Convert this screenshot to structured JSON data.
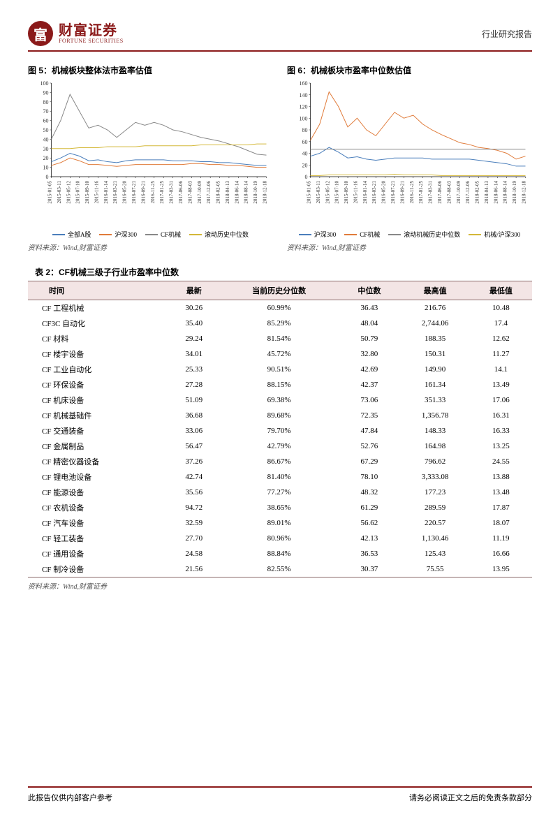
{
  "header": {
    "logo_char": "富",
    "logo_cn": "财富证券",
    "logo_en": "FORTUNE SECURITIES",
    "right": "行业研究报告"
  },
  "chart5": {
    "title": "图 5：机械板块整体法市盈率估值",
    "type": "line",
    "ylim": [
      0,
      100
    ],
    "ytick_step": 10,
    "background_color": "#ffffff",
    "axis_color": "#000000",
    "grid_color": "#cccccc",
    "label_fontsize": 9,
    "x_labels": [
      "2015-01-05",
      "2015-03-11",
      "2015-05-12",
      "2015-07-10",
      "2015-09-10",
      "2015-11-16",
      "2016-01-14",
      "2016-03-21",
      "2016-05-20",
      "2016-07-21",
      "2016-09-21",
      "2016-11-25",
      "2017-01-25",
      "2017-03-31",
      "2017-06-06",
      "2017-08-03",
      "2017-10-09",
      "2017-12-06",
      "2018-02-05",
      "2018-04-13",
      "2018-06-14",
      "2018-08-14",
      "2018-10-19",
      "2018-12-18"
    ],
    "series": [
      {
        "name": "全部A股",
        "color": "#4a7ebb",
        "values": [
          16,
          20,
          25,
          22,
          17,
          18,
          16,
          15,
          17,
          18,
          18,
          18,
          18,
          17,
          17,
          17,
          16,
          16,
          15,
          15,
          14,
          13,
          12,
          12
        ]
      },
      {
        "name": "沪深300",
        "color": "#e07b3a",
        "values": [
          12,
          15,
          20,
          17,
          13,
          13,
          12,
          11,
          12,
          13,
          13,
          13,
          13,
          13,
          13,
          14,
          14,
          13,
          13,
          12,
          12,
          11,
          10,
          10
        ]
      },
      {
        "name": "CF机械",
        "color": "#888888",
        "values": [
          40,
          60,
          88,
          70,
          52,
          55,
          50,
          42,
          50,
          58,
          55,
          58,
          55,
          50,
          48,
          45,
          42,
          40,
          38,
          35,
          32,
          28,
          24,
          23
        ]
      },
      {
        "name": "滚动历史中位数",
        "color": "#d4b838",
        "values": [
          30,
          30,
          30,
          31,
          31,
          31,
          32,
          32,
          32,
          32,
          33,
          33,
          33,
          33,
          33,
          33,
          34,
          34,
          34,
          34,
          34,
          34,
          35,
          35
        ]
      }
    ],
    "source": "资料来源：Wind,财富证券"
  },
  "chart6": {
    "title": "图 6：机械板块市盈率中位数估值",
    "type": "line",
    "ylim": [
      0,
      160
    ],
    "ytick_step": 20,
    "background_color": "#ffffff",
    "axis_color": "#000000",
    "grid_color": "#cccccc",
    "label_fontsize": 9,
    "x_labels": [
      "2015-01-05",
      "2015-03-11",
      "2015-05-12",
      "2015-07-10",
      "2015-09-10",
      "2015-11-16",
      "2016-01-14",
      "2016-03-21",
      "2016-05-20",
      "2016-07-21",
      "2016-09-21",
      "2016-11-25",
      "2017-01-25",
      "2017-03-31",
      "2017-06-06",
      "2017-08-03",
      "2017-10-09",
      "2017-12-06",
      "2018-02-05",
      "2018-04-13",
      "2018-06-14",
      "2018-08-14",
      "2018-10-19",
      "2018-12-18"
    ],
    "series": [
      {
        "name": "沪深300",
        "color": "#4a7ebb",
        "values": [
          35,
          40,
          50,
          42,
          32,
          34,
          30,
          28,
          30,
          32,
          32,
          32,
          32,
          30,
          30,
          30,
          30,
          30,
          28,
          26,
          24,
          22,
          18,
          18
        ]
      },
      {
        "name": "CF机械",
        "color": "#e07b3a",
        "values": [
          62,
          90,
          145,
          120,
          85,
          100,
          80,
          70,
          90,
          110,
          100,
          105,
          90,
          80,
          72,
          65,
          58,
          55,
          50,
          48,
          45,
          40,
          30,
          35
        ]
      },
      {
        "name": "滚动机械历史中位数",
        "color": "#888888",
        "values": [
          47,
          47,
          47,
          47,
          47,
          47,
          47,
          47,
          47,
          47,
          47,
          47,
          47,
          47,
          47,
          47,
          47,
          47,
          47,
          47,
          47,
          47,
          47,
          47
        ]
      },
      {
        "name": "机械/沪深300",
        "color": "#d4b838",
        "values": [
          2,
          2,
          3,
          3,
          3,
          3,
          3,
          3,
          3,
          4,
          3,
          3,
          3,
          3,
          2,
          2,
          2,
          2,
          2,
          2,
          2,
          2,
          2,
          2
        ]
      }
    ],
    "source": "资料来源：Wind,财富证券"
  },
  "table2": {
    "title": "表 2：CF机械三级子行业市盈率中位数",
    "header_bg": "#f3e5e5",
    "border_color": "#8b6b6b",
    "columns": [
      "时间",
      "最新",
      "当前历史分位数",
      "中位数",
      "最高值",
      "最低值"
    ],
    "rows": [
      [
        "CF 工程机械",
        "30.26",
        "60.99%",
        "36.43",
        "216.76",
        "10.48"
      ],
      [
        "CF3C 自动化",
        "35.40",
        "85.29%",
        "48.04",
        "2,744.06",
        "17.4"
      ],
      [
        "CF 材料",
        "29.24",
        "81.54%",
        "50.79",
        "188.35",
        "12.62"
      ],
      [
        "CF 楼宇设备",
        "34.01",
        "45.72%",
        "32.80",
        "150.31",
        "11.27"
      ],
      [
        "CF 工业自动化",
        "25.33",
        "90.51%",
        "42.69",
        "149.90",
        "14.1"
      ],
      [
        "CF 环保设备",
        "27.28",
        "88.15%",
        "42.37",
        "161.34",
        "13.49"
      ],
      [
        "CF 机床设备",
        "51.09",
        "69.38%",
        "73.06",
        "351.33",
        "17.06"
      ],
      [
        "CF 机械基础件",
        "36.68",
        "89.68%",
        "72.35",
        "1,356.78",
        "16.31"
      ],
      [
        "CF 交通装备",
        "33.06",
        "79.70%",
        "47.84",
        "148.33",
        "16.33"
      ],
      [
        "CF 金属制品",
        "56.47",
        "42.79%",
        "52.76",
        "164.98",
        "13.25"
      ],
      [
        "CF 精密仪器设备",
        "37.26",
        "86.67%",
        "67.29",
        "796.62",
        "24.55"
      ],
      [
        "CF 锂电池设备",
        "42.74",
        "81.40%",
        "78.10",
        "3,333.08",
        "13.88"
      ],
      [
        "CF 能源设备",
        "35.56",
        "77.27%",
        "48.32",
        "177.23",
        "13.48"
      ],
      [
        "CF 农机设备",
        "94.72",
        "38.65%",
        "61.29",
        "289.59",
        "17.87"
      ],
      [
        "CF 汽车设备",
        "32.59",
        "89.01%",
        "56.62",
        "220.57",
        "18.07"
      ],
      [
        "CF 轻工装备",
        "27.70",
        "80.96%",
        "42.13",
        "1,130.46",
        "11.19"
      ],
      [
        "CF 通用设备",
        "24.58",
        "88.84%",
        "36.53",
        "125.43",
        "16.66"
      ],
      [
        "CF 制冷设备",
        "21.56",
        "82.55%",
        "30.37",
        "75.55",
        "13.95"
      ]
    ],
    "source": "资料来源：Wind,财富证券"
  },
  "footer": {
    "left": "此报告仅供内部客户参考",
    "right": "请务必阅读正文之后的免责条款部分"
  }
}
